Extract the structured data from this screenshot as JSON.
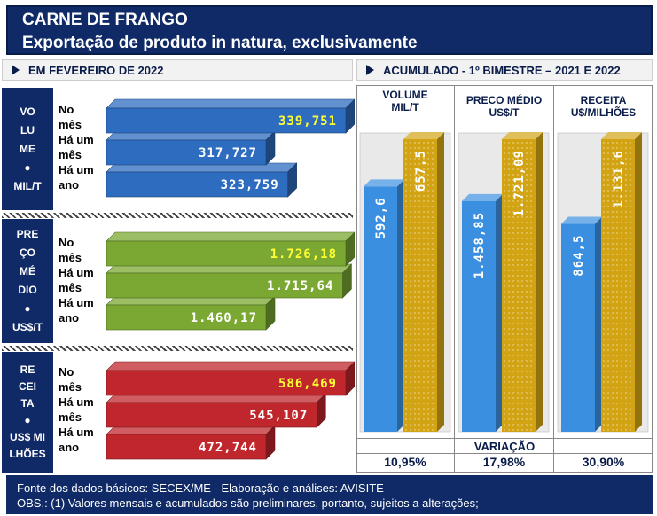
{
  "header": {
    "title": "CARNE DE FRANGO",
    "subtitle": "Exportação de produto in natura, exclusivamente"
  },
  "left_section": {
    "title": "EM FEVEREIRO DE 2022"
  },
  "right_section": {
    "title": "ACUMULADO - 1º BIMESTRE – 2021 E 2022"
  },
  "row_labels": {
    "l1": "No",
    "l2": "mês",
    "l3": "Há um",
    "l4": "mês",
    "l5": "Há um",
    "l6": "ano"
  },
  "metrics": [
    {
      "label_lines": [
        "VO",
        "LU",
        "ME",
        "MIL/T"
      ],
      "color": "#2e6cc0"
    },
    {
      "label_lines": [
        "PRE",
        "ÇO",
        "MÉ",
        "DIO",
        "US$/T"
      ],
      "color": "#7aa832"
    },
    {
      "label_lines": [
        "RE",
        "CEI",
        "TA",
        "US$ MI",
        "LHÕES"
      ],
      "color": "#c0272d"
    }
  ],
  "columns": {
    "volume": {
      "head1": "VOLUME",
      "head2": "MIL/T"
    },
    "preco": {
      "head1": "PRECO MÉDIO",
      "head2": "US$/T"
    },
    "receita": {
      "head1": "RECEITA",
      "head2": "U$/MILHÕES"
    }
  },
  "variacao": {
    "label": "VARIAÇÃO",
    "volume": "10,95%",
    "preco": "17,98%",
    "receita": "30,90%"
  },
  "footer": {
    "line1": "Fonte dos dados básicos: SECEX/ME - Elaboração e análises: AVISITE",
    "line2": "OBS.: (1) Valores mensais e acumulados são preliminares, portanto, sujeitos a alterações;"
  },
  "chart_data": [
    {
      "type": "bar",
      "title": "Volume (mil/t)",
      "categories": [
        "No mês",
        "Há um mês",
        "Há um ano"
      ],
      "values": [
        339.751,
        317.727,
        323.759
      ],
      "labels": [
        "339,751",
        "317,727",
        "323,759"
      ],
      "color": "#2e6cc0"
    },
    {
      "type": "bar",
      "title": "Preço médio (US$/t)",
      "categories": [
        "No mês",
        "Há um mês",
        "Há um ano"
      ],
      "values": [
        1726.18,
        1715.64,
        1460.17
      ],
      "labels": [
        "1.726,18",
        "1.715,64",
        "1.460,17"
      ],
      "color": "#7aa832"
    },
    {
      "type": "bar",
      "title": "Receita (US$ milhões)",
      "categories": [
        "No mês",
        "Há um mês",
        "Há um ano"
      ],
      "values": [
        586.469,
        545.107,
        472.744
      ],
      "labels": [
        "586,469",
        "545,107",
        "472,744"
      ],
      "color": "#c0272d"
    },
    {
      "type": "bar",
      "title": "Acumulado 1º bimestre",
      "categories": [
        "VOLUME MIL/T",
        "PRECO MÉDIO US$/T",
        "RECEITA U$/MILHÕES"
      ],
      "series": [
        {
          "name": "2021",
          "values": [
            592.6,
            1458.85,
            864.5
          ],
          "labels": [
            "592,6",
            "1.458,85",
            "864,5"
          ]
        },
        {
          "name": "2022",
          "values": [
            657.5,
            1721.09,
            1131.6
          ],
          "labels": [
            "657,5",
            "1.721,09",
            "1.131,6"
          ]
        }
      ]
    }
  ]
}
